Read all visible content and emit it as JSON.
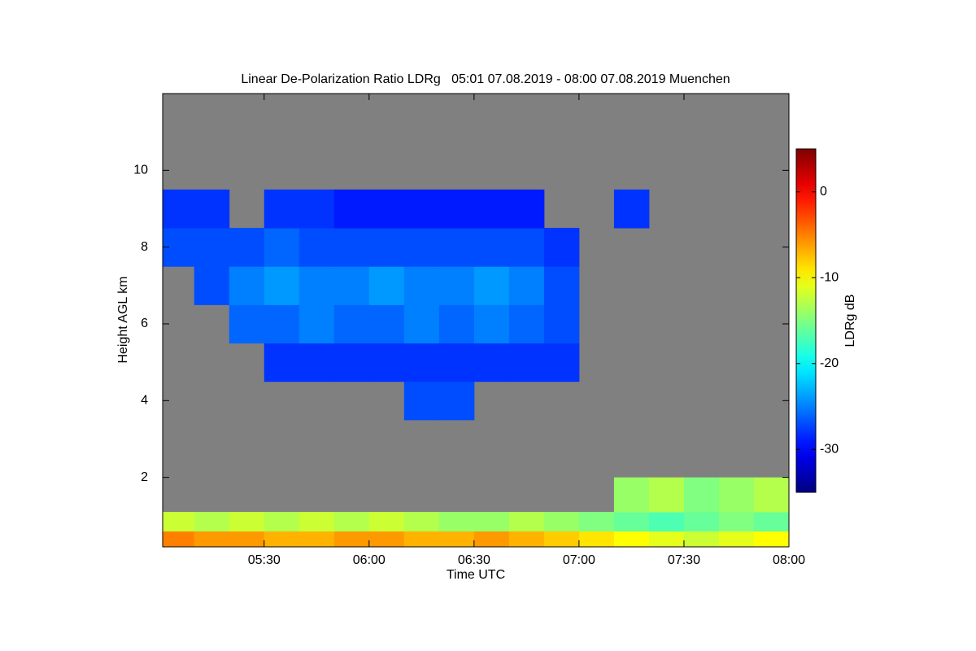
{
  "chart_data": {
    "type": "heatmap",
    "title": "Linear De-Polarization Ratio LDRg   05:01 07.08.2019 - 08:00 07.08.2019 Muenchen",
    "x_label": "Time UTC",
    "y_label": "Height AGL km",
    "colorbar_label": "LDRg dB",
    "xlim": [
      301,
      480
    ],
    "xticks": [
      {
        "value": 330,
        "label": "05:30"
      },
      {
        "value": 360,
        "label": "06:00"
      },
      {
        "value": 390,
        "label": "06:30"
      },
      {
        "value": 420,
        "label": "07:00"
      },
      {
        "value": 450,
        "label": "07:30"
      },
      {
        "value": 480,
        "label": "08:00"
      }
    ],
    "ylim": [
      0.19,
      12
    ],
    "yticks": [
      2,
      4,
      6,
      8,
      10
    ],
    "clim": [
      -35,
      5
    ],
    "cticks": [
      0,
      -10,
      -20,
      -30
    ],
    "colormap": "jet",
    "background": "#808080",
    "x_edges": [
      301,
      310,
      320,
      330,
      340,
      350,
      360,
      370,
      380,
      390,
      400,
      410,
      420,
      430,
      440,
      450,
      460,
      470,
      480
    ],
    "y_edges": [
      0.19,
      0.6,
      1.1,
      2,
      3.5,
      4.5,
      5.5,
      6.5,
      7.5,
      8.5,
      9.5,
      12
    ],
    "z": [
      [
        -5,
        -6,
        -6,
        -7,
        -7,
        -6,
        -6,
        -7,
        -7,
        -6,
        -7,
        -8,
        -9,
        -10,
        -11,
        -12,
        -11,
        -10
      ],
      [
        -12,
        -13,
        -12,
        -13,
        -12,
        -13,
        -12,
        -13,
        -14,
        -14,
        -13,
        -14,
        -15,
        -16,
        -17,
        -16,
        -15,
        -16
      ],
      [
        null,
        null,
        null,
        null,
        null,
        null,
        null,
        null,
        null,
        null,
        null,
        null,
        null,
        -14,
        -13,
        -15,
        -14,
        -13
      ],
      [
        null,
        null,
        null,
        null,
        null,
        null,
        null,
        null,
        null,
        null,
        null,
        null,
        null,
        null,
        null,
        null,
        null,
        null
      ],
      [
        null,
        null,
        null,
        null,
        null,
        null,
        null,
        -27,
        -27,
        null,
        null,
        null,
        null,
        null,
        null,
        null,
        null,
        null
      ],
      [
        null,
        null,
        null,
        -28,
        -28,
        -28,
        -28,
        -28,
        -28,
        -28,
        -28,
        -28,
        null,
        null,
        null,
        null,
        null,
        null
      ],
      [
        null,
        null,
        -26,
        -26,
        -25,
        -26,
        -26,
        -25,
        -26,
        -25,
        -26,
        -27,
        null,
        null,
        null,
        null,
        null,
        null
      ],
      [
        null,
        -27,
        -25,
        -24,
        -25,
        -25,
        -24,
        -25,
        -25,
        -24,
        -25,
        -27,
        null,
        null,
        null,
        null,
        null,
        null
      ],
      [
        -27,
        -27,
        -27,
        -26,
        -27,
        -27,
        -27,
        -27,
        -27,
        -27,
        -27,
        -28,
        null,
        null,
        null,
        null,
        null,
        null
      ],
      [
        -28,
        -28,
        null,
        -28,
        -28,
        -29,
        -29,
        -29,
        -29,
        -29,
        -29,
        null,
        null,
        -28,
        null,
        null,
        null,
        null
      ],
      [
        null,
        null,
        null,
        null,
        null,
        null,
        null,
        null,
        null,
        null,
        null,
        null,
        null,
        null,
        null,
        null,
        null,
        null
      ]
    ]
  }
}
